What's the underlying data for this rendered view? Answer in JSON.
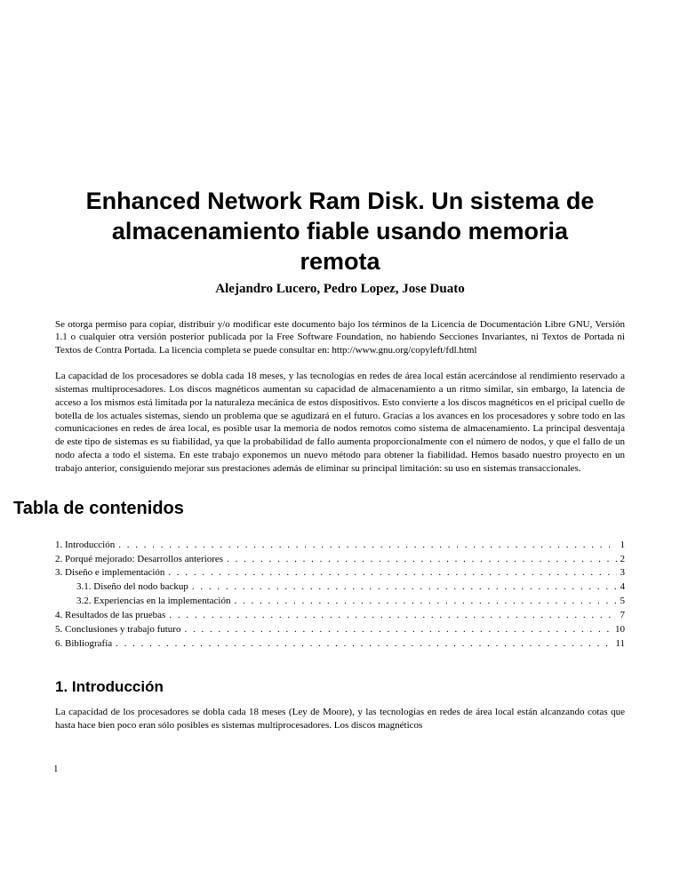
{
  "title": "Enhanced Network Ram Disk. Un sistema de almacenamiento fiable usando memoria remota",
  "authors": "Alejandro Lucero, Pedro Lopez, Jose Duato",
  "license": "Se otorga permiso para copiar, distribuir y/o modificar este documento bajo los términos de la Licencia de Documentación Libre GNU, Versión 1.1 o cualquier otra versión posterior publicada por la Free Software Foundation, no habiendo Secciones Invariantes, ni Textos de Portada ni Textos de Contra Portada. La licencia completa se puede consultar en: http://www.gnu.org/copyleft/fdl.html",
  "abstract": "La capacidad de los procesadores se dobla cada 18 meses, y las tecnologías en redes de área local están acercándose al rendimiento reservado a sistemas multiprocesadores. Los discos magnéticos aumentan su capacidad de almacenamiento a un ritmo similar, sin embargo, la latencia de acceso a los mismos está limitada por la naturaleza mecánica de estos dispositivos. Esto convierte a los discos magnéticos en el pricipal cuello de botella de los actuales sistemas, siendo un problema que se agudizará en el futuro. Gracias a los avances en los procesadores y sobre todo en las comunicaciones en redes de área local, es posible usar la memoria de nodos remotos como sistema de almacenamiento. La principal desventaja de este tipo de sistemas es su fiabilidad, ya que la probabilidad de fallo aumenta proporcionalmente con el número de nodos, y que el fallo de un nodo afecta a todo el sistema. En este trabajo exponemos un nuevo método para obtener la fiabilidad. Hemos basado nuestro proyecto en un trabajo anterior, consiguiendo mejorar sus prestaciones además de eliminar su principal limitación: su uso en sistemas transaccionales.",
  "toc_heading": "Tabla de contenidos",
  "toc": [
    {
      "label": "1. Introducción",
      "page": "1",
      "indent": false
    },
    {
      "label": "2. Porqué mejorado: Desarrollos anteriores",
      "page": "2",
      "indent": false
    },
    {
      "label": "3. Diseño e implementación",
      "page": "3",
      "indent": false
    },
    {
      "label": "3.1. Diseño del nodo backup",
      "page": "4",
      "indent": true
    },
    {
      "label": "3.2. Experiencias en la implementación",
      "page": "5",
      "indent": true
    },
    {
      "label": "4. Resultados de las pruebas",
      "page": "7",
      "indent": false
    },
    {
      "label": "5. Conclusiones y trabajo futuro",
      "page": "10",
      "indent": false
    },
    {
      "label": "6. Bibliografía",
      "page": "11",
      "indent": false
    }
  ],
  "section1": {
    "heading": "1. Introducción",
    "body": "La capacidad de los procesadores se dobla cada 18 meses (Ley de Moore), y las tecnologías en redes de área local están alcanzando cotas que hasta hace bien poco eran sólo posibles es sistemas multiprocesadores. Los discos magnéticos"
  },
  "page_number": "1"
}
